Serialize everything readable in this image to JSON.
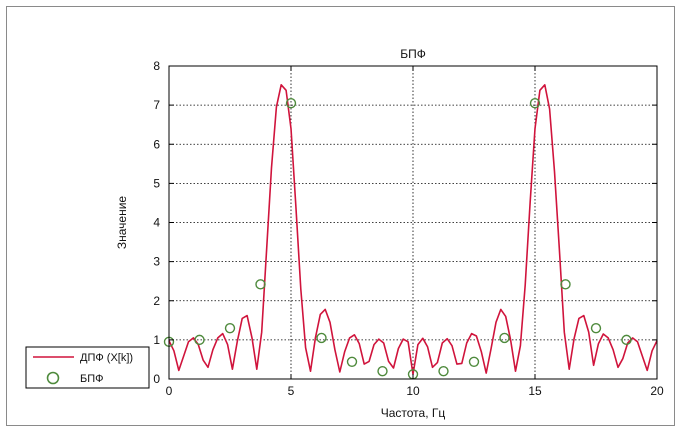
{
  "chart_data": {
    "type": "line",
    "title": "БПФ",
    "xlabel": "Частота, Гц",
    "ylabel": "Значение",
    "xlim": [
      0,
      20
    ],
    "ylim": [
      0,
      8
    ],
    "xticks": [
      "0",
      "5",
      "10",
      "15",
      "20"
    ],
    "yticks": [
      "0",
      "1",
      "2",
      "3",
      "4",
      "5",
      "6",
      "7",
      "8"
    ],
    "grid": true,
    "legend_position": "bottom-left outside",
    "series": [
      {
        "name": "ДПФ (X[k])",
        "style": "line",
        "color": "#d0143c",
        "x": [
          0.0,
          0.2,
          0.4,
          0.6,
          0.8,
          1.0,
          1.2,
          1.4,
          1.6,
          1.8,
          2.0,
          2.2,
          2.4,
          2.6,
          2.8,
          3.0,
          3.2,
          3.4,
          3.6,
          3.8,
          4.0,
          4.2,
          4.4,
          4.6,
          4.8,
          5.0,
          5.2,
          5.4,
          5.6,
          5.8,
          6.0,
          6.2,
          6.4,
          6.6,
          6.8,
          7.0,
          7.2,
          7.4,
          7.6,
          7.8,
          8.0,
          8.2,
          8.4,
          8.6,
          8.8,
          9.0,
          9.2,
          9.4,
          9.6,
          9.8,
          10.0,
          10.2,
          10.4,
          10.6,
          10.8,
          11.0,
          11.2,
          11.4,
          11.6,
          11.8,
          12.0,
          12.2,
          12.4,
          12.6,
          12.8,
          13.0,
          13.2,
          13.4,
          13.6,
          13.8,
          14.0,
          14.2,
          14.4,
          14.6,
          14.8,
          15.0,
          15.2,
          15.4,
          15.6,
          15.8,
          16.0,
          16.2,
          16.4,
          16.6,
          16.8,
          17.0,
          17.2,
          17.4,
          17.6,
          17.8,
          18.0,
          18.2,
          18.4,
          18.6,
          18.8,
          19.0,
          19.2,
          19.4,
          19.6,
          19.8,
          20.0
        ],
        "y": [
          0.98,
          0.72,
          0.22,
          0.58,
          0.95,
          1.05,
          0.88,
          0.48,
          0.3,
          0.75,
          1.05,
          1.16,
          0.88,
          0.25,
          0.96,
          1.55,
          1.62,
          1.05,
          0.25,
          1.2,
          3.3,
          5.4,
          6.95,
          7.52,
          7.38,
          6.4,
          4.4,
          2.3,
          0.8,
          0.2,
          1.05,
          1.65,
          1.78,
          1.45,
          0.75,
          0.18,
          0.7,
          1.05,
          1.13,
          0.9,
          0.38,
          0.45,
          0.88,
          1.02,
          0.92,
          0.45,
          0.28,
          0.78,
          1.02,
          0.95,
          0.12,
          0.88,
          1.04,
          0.82,
          0.3,
          0.42,
          0.92,
          1.03,
          0.85,
          0.38,
          0.4,
          0.92,
          1.16,
          1.1,
          0.7,
          0.15,
          0.78,
          1.45,
          1.78,
          1.6,
          1.0,
          0.2,
          0.85,
          2.4,
          4.5,
          6.4,
          7.38,
          7.52,
          6.9,
          5.3,
          3.3,
          1.2,
          0.25,
          1.02,
          1.55,
          1.62,
          1.2,
          0.35,
          0.9,
          1.15,
          1.05,
          0.75,
          0.3,
          0.52,
          0.92,
          1.05,
          0.95,
          0.58,
          0.22,
          0.72,
          0.98
        ]
      },
      {
        "name": "БПФ",
        "style": "markers",
        "marker": "circle",
        "color": "#4e8a3c",
        "x": [
          0,
          1.25,
          2.5,
          3.75,
          5.0,
          6.25,
          7.5,
          8.75,
          10.0,
          11.25,
          12.5,
          13.75,
          15.0,
          16.25,
          17.5,
          18.75
        ],
        "y": [
          0.95,
          1.0,
          1.3,
          2.42,
          7.05,
          1.05,
          0.44,
          0.2,
          0.12,
          0.2,
          0.44,
          1.05,
          7.05,
          2.42,
          1.3,
          1.0
        ]
      }
    ]
  }
}
